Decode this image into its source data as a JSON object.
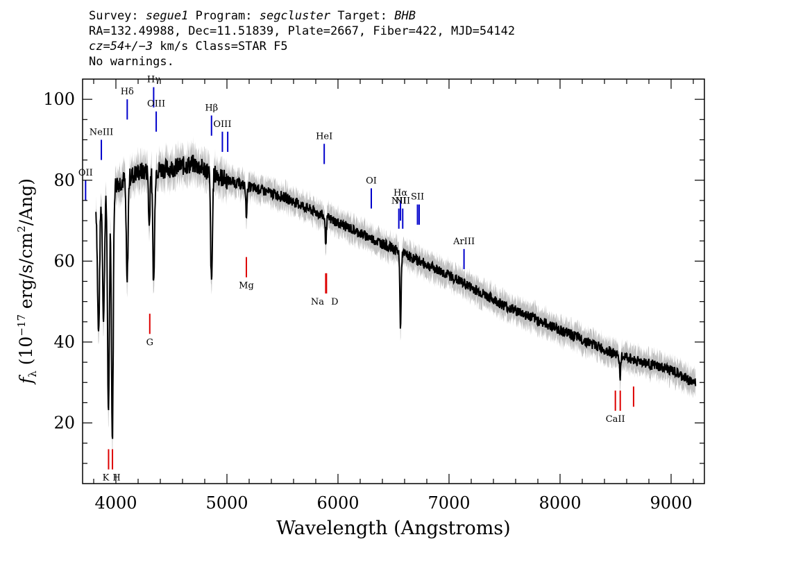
{
  "header": {
    "survey_label": "Survey:",
    "survey": "segue1",
    "program_label": "Program:",
    "program": "segcluster",
    "target_label": "Target:",
    "target": "BHB",
    "line2": "RA=132.49988, Dec=11.51839, Plate=2667, Fiber=422, MJD=54142",
    "line3_z": "cz=54+/−3",
    "line3_rest": "km/s Class=STAR F5",
    "line4": "No warnings."
  },
  "chart_data": {
    "type": "line",
    "title": "",
    "xlabel": "Wavelength (Angstroms)",
    "ylabel": "f_λ (10^-17 erg/s/cm^2/Ang)",
    "xlim": [
      3700,
      9300
    ],
    "ylim": [
      5,
      105
    ],
    "xticks": [
      4000,
      5000,
      6000,
      7000,
      8000,
      9000
    ],
    "yticks": [
      20,
      40,
      60,
      80,
      100
    ],
    "grid": false,
    "colors": {
      "flux": "#000000",
      "error_band": "#c0c0c0",
      "emission": "#0000cc",
      "absorption": "#dd0000"
    },
    "continuum": {
      "x": [
        3800,
        4000,
        4200,
        4500,
        4700,
        5000,
        5500,
        6000,
        6500,
        7000,
        7500,
        8000,
        8500,
        9000,
        9200
      ],
      "y": [
        72,
        79,
        82,
        83,
        84,
        80,
        76,
        69.5,
        63,
        56.5,
        49,
        43,
        37,
        33,
        30
      ]
    },
    "absorption_features": [
      {
        "x": 3835,
        "depth": 6
      },
      {
        "x": 3845,
        "depth": 30
      },
      {
        "x": 3889,
        "depth": 30
      },
      {
        "x": 3933,
        "depth": 56
      },
      {
        "x": 3968,
        "depth": 62
      },
      {
        "x": 4101,
        "depth": 26
      },
      {
        "x": 4300,
        "depth": 14
      },
      {
        "x": 4340,
        "depth": 28
      },
      {
        "x": 4861,
        "depth": 28
      },
      {
        "x": 5175,
        "depth": 7
      },
      {
        "x": 5890,
        "depth": 6
      },
      {
        "x": 6563,
        "depth": 18
      },
      {
        "x": 8542,
        "depth": 5
      }
    ],
    "emission_lines": [
      {
        "label": "OII",
        "x": 3727,
        "y_top": 80,
        "y_bottom": 75
      },
      {
        "label": "NeIII",
        "x": 3869,
        "y_top": 90,
        "y_bottom": 85
      },
      {
        "label": "Hδ",
        "x": 4102,
        "y_top": 100,
        "y_bottom": 95
      },
      {
        "label": "Hγ",
        "x": 4340,
        "y_top": 103,
        "y_bottom": 98
      },
      {
        "label": "OIII",
        "x": 4363,
        "y_top": 97,
        "y_bottom": 92
      },
      {
        "label": "Hβ",
        "x": 4861,
        "y_top": 96,
        "y_bottom": 91
      },
      {
        "label": "OIII",
        "x": 4959,
        "y_top": 92,
        "y_bottom": 87
      },
      {
        "label": "",
        "x": 5007,
        "y_top": 92,
        "y_bottom": 87
      },
      {
        "label": "HeI",
        "x": 5876,
        "y_top": 89,
        "y_bottom": 84
      },
      {
        "label": "OI",
        "x": 6300,
        "y_top": 78,
        "y_bottom": 73
      },
      {
        "label": "NII",
        "x": 6548,
        "y_top": 73,
        "y_bottom": 68
      },
      {
        "label": "Hα",
        "x": 6563,
        "y_top": 75,
        "y_bottom": 70
      },
      {
        "label": "NII",
        "x": 6583,
        "y_top": 73,
        "y_bottom": 68
      },
      {
        "label": "SII",
        "x": 6716,
        "y_top": 74,
        "y_bottom": 69
      },
      {
        "label": "",
        "x": 6731,
        "y_top": 74,
        "y_bottom": 69
      },
      {
        "label": "ArIII",
        "x": 7135,
        "y_top": 63,
        "y_bottom": 58
      }
    ],
    "absorption_lines": [
      {
        "label": "K",
        "x": 3934,
        "y_top": 13.5,
        "y_bottom": 8.5
      },
      {
        "label": "H",
        "x": 3969,
        "y_top": 13.5,
        "y_bottom": 8.5
      },
      {
        "label": "G",
        "x": 4305,
        "y_top": 47,
        "y_bottom": 42
      },
      {
        "label": "Mg",
        "x": 5175,
        "y_top": 61,
        "y_bottom": 56
      },
      {
        "label": "Na",
        "x": 5890,
        "y_top": 57,
        "y_bottom": 52
      },
      {
        "label": "D",
        "x": 5896,
        "y_top": 57,
        "y_bottom": 52
      },
      {
        "label": "CaII",
        "x": 8498,
        "y_top": 28,
        "y_bottom": 23
      },
      {
        "label": "",
        "x": 8542,
        "y_top": 28,
        "y_bottom": 23
      },
      {
        "label": "",
        "x": 8662,
        "y_top": 29,
        "y_bottom": 24
      }
    ]
  }
}
